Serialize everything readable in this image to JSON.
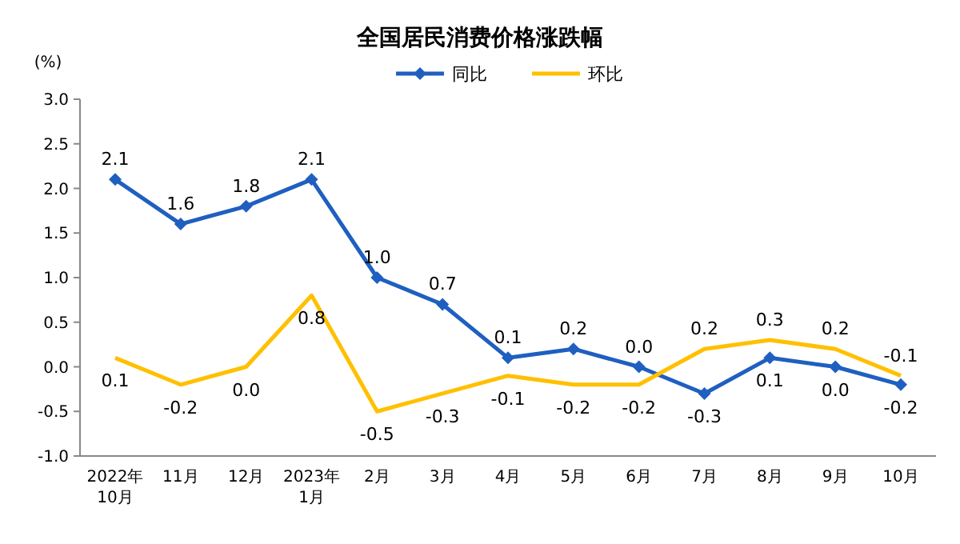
{
  "chart_data": {
    "type": "line",
    "title": "全国居民消费价格涨跌幅",
    "ylabel": "(%)",
    "categories": [
      "2022年\n10月",
      "11月",
      "12月",
      "2023年\n1月",
      "2月",
      "3月",
      "4月",
      "5月",
      "6月",
      "7月",
      "8月",
      "9月",
      "10月"
    ],
    "series": [
      {
        "name": "同比",
        "color": "#1f5fc0",
        "marker": "diamond",
        "values": [
          2.1,
          1.6,
          1.8,
          2.1,
          1.0,
          0.7,
          0.1,
          0.2,
          0.0,
          -0.3,
          0.1,
          0.0,
          -0.2
        ],
        "value_labels": [
          "2.1",
          "1.6",
          "1.8",
          "2.1",
          "1.0",
          "0.7",
          "0.1",
          "0.2",
          "0.0",
          "-0.3",
          "0.1",
          "0.0",
          "-0.2"
        ]
      },
      {
        "name": "环比",
        "color": "#ffc000",
        "marker": "none",
        "values": [
          0.1,
          -0.2,
          0.0,
          0.8,
          -0.5,
          -0.3,
          -0.1,
          -0.2,
          -0.2,
          0.2,
          0.3,
          0.2,
          -0.1
        ],
        "value_labels": [
          "0.1",
          "-0.2",
          "0.0",
          "0.8",
          "-0.5",
          "-0.3",
          "-0.1",
          "-0.2",
          "-0.2",
          "0.2",
          "0.3",
          "0.2",
          "-0.1"
        ]
      }
    ],
    "ylim": [
      -1.0,
      3.0
    ],
    "yticks": [
      {
        "value": -1,
        "label": "-1.0"
      },
      {
        "value": -0.5,
        "label": "-0.5"
      },
      {
        "value": 0,
        "label": "0.0"
      },
      {
        "value": 0.5,
        "label": "0.5"
      },
      {
        "value": 1,
        "label": "1.0"
      },
      {
        "value": 1.5,
        "label": "1.5"
      },
      {
        "value": 2,
        "label": "2.0"
      },
      {
        "value": 2.5,
        "label": "2.5"
      },
      {
        "value": 3,
        "label": "3.0"
      }
    ],
    "legend": "top",
    "line_style": "solid"
  }
}
